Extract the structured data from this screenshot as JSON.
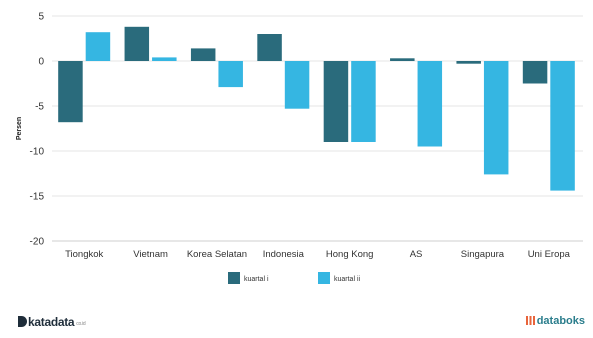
{
  "chart_data": {
    "type": "bar",
    "title": "",
    "xlabel": "",
    "ylabel": "Persen",
    "ylim": [
      -20,
      5
    ],
    "yticks": [
      5,
      0,
      -5,
      -10,
      -15,
      -20
    ],
    "grid": true,
    "legend_position": "bottom",
    "categories": [
      "Tiongkok",
      "Vietnam",
      "Korea Selatan",
      "Indonesia",
      "Hong Kong",
      "AS",
      "Singapura",
      "Uni Eropa"
    ],
    "series": [
      {
        "name": "kuartal i",
        "color": "#2a6b7c",
        "values": [
          -6.8,
          3.8,
          1.4,
          3.0,
          -9.0,
          0.3,
          -0.3,
          -2.5
        ]
      },
      {
        "name": "kuartal ii",
        "color": "#35b6e2",
        "values": [
          3.2,
          0.4,
          -2.9,
          -5.3,
          -9.0,
          -9.5,
          -12.6,
          -14.4
        ]
      }
    ]
  },
  "branding": {
    "left": "katadata",
    "left_small": "co.id",
    "right": "databoks",
    "left_icon": "katadata-logo-icon",
    "right_icon": "databoks-logo-icon"
  }
}
